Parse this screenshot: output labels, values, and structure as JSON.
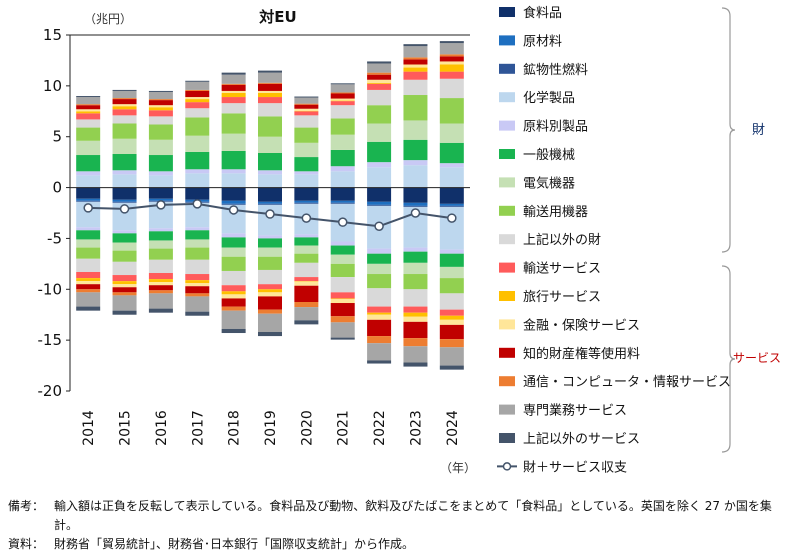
{
  "chart_data": {
    "type": "bar",
    "title": "対EU",
    "ylabel": "（兆円）",
    "xlabel": "（年）",
    "ylim": [
      -20,
      15
    ],
    "yticks": [
      15,
      10,
      5,
      0,
      -5,
      -10,
      -15,
      -20
    ],
    "categories": [
      "2014",
      "2015",
      "2016",
      "2017",
      "2018",
      "2019",
      "2020",
      "2021",
      "2022",
      "2023",
      "2024"
    ],
    "stacking": "positive values stacked upward from 0; negative values stacked downward from 0",
    "series": [
      {
        "name": "食料品",
        "color": "#10306a",
        "group": "goods",
        "values": [
          [
            0,
            -1.1
          ],
          [
            0,
            -1.2
          ],
          [
            0,
            -1.1
          ],
          [
            0,
            -1.2
          ],
          [
            0,
            -1.3
          ],
          [
            0,
            -1.4
          ],
          [
            0,
            -1.3
          ],
          [
            0,
            -1.3
          ],
          [
            0,
            -1.4
          ],
          [
            0,
            -1.5
          ],
          [
            0,
            -1.6
          ]
        ]
      },
      {
        "name": "原材料",
        "color": "#1e6fc0",
        "group": "goods",
        "values": [
          [
            0,
            -0.2
          ],
          [
            0,
            -0.2
          ],
          [
            0,
            -0.2
          ],
          [
            0,
            -0.2
          ],
          [
            0,
            -0.3
          ],
          [
            0,
            -0.2
          ],
          [
            0,
            -0.2
          ],
          [
            0,
            -0.2
          ],
          [
            0,
            -0.3
          ],
          [
            0,
            -0.3
          ],
          [
            0,
            -0.2
          ]
        ]
      },
      {
        "name": "鉱物性燃料",
        "color": "#2f5597",
        "group": "goods",
        "values": [
          [
            0,
            -0.1
          ],
          [
            0,
            -0.1
          ],
          [
            0,
            -0.1
          ],
          [
            0,
            -0.1
          ],
          [
            0,
            -0.1
          ],
          [
            0,
            -0.1
          ],
          [
            0,
            -0.1
          ],
          [
            0,
            -0.1
          ],
          [
            0,
            -0.1
          ],
          [
            0,
            -0.1
          ],
          [
            0,
            -0.1
          ]
        ]
      },
      {
        "name": "化学製品",
        "color": "#bdd7ee",
        "group": "goods",
        "values": [
          [
            1.2,
            -2.5
          ],
          [
            1.3,
            -2.7
          ],
          [
            1.2,
            -2.6
          ],
          [
            1.4,
            -2.4
          ],
          [
            1.4,
            -2.8
          ],
          [
            1.3,
            -3.0
          ],
          [
            1.3,
            -3.0
          ],
          [
            1.6,
            -3.7
          ],
          [
            2.0,
            -4.2
          ],
          [
            2.2,
            -4.0
          ],
          [
            2.0,
            -4.2
          ]
        ]
      },
      {
        "name": "原料別製品",
        "color": "#c9c9f5",
        "group": "goods",
        "values": [
          [
            0.4,
            -0.3
          ],
          [
            0.4,
            -0.3
          ],
          [
            0.4,
            -0.3
          ],
          [
            0.4,
            -0.3
          ],
          [
            0.4,
            -0.4
          ],
          [
            0.4,
            -0.3
          ],
          [
            0.3,
            -0.3
          ],
          [
            0.5,
            -0.4
          ],
          [
            0.5,
            -0.5
          ],
          [
            0.5,
            -0.4
          ],
          [
            0.4,
            -0.4
          ]
        ]
      },
      {
        "name": "一般機械",
        "color": "#19b450",
        "group": "goods",
        "values": [
          [
            1.6,
            -0.9
          ],
          [
            1.6,
            -0.9
          ],
          [
            1.6,
            -0.9
          ],
          [
            1.7,
            -0.9
          ],
          [
            1.8,
            -1.0
          ],
          [
            1.7,
            -0.9
          ],
          [
            1.4,
            -0.8
          ],
          [
            1.6,
            -0.9
          ],
          [
            2.0,
            -1.0
          ],
          [
            2.0,
            -1.1
          ],
          [
            2.0,
            -1.3
          ]
        ]
      },
      {
        "name": "電気機器",
        "color": "#c5e0b4",
        "group": "goods",
        "values": [
          [
            1.4,
            -0.8
          ],
          [
            1.5,
            -0.8
          ],
          [
            1.5,
            -0.8
          ],
          [
            1.6,
            -0.8
          ],
          [
            1.7,
            -0.9
          ],
          [
            1.6,
            -0.9
          ],
          [
            1.4,
            -0.8
          ],
          [
            1.5,
            -0.9
          ],
          [
            1.8,
            -1.0
          ],
          [
            1.9,
            -1.1
          ],
          [
            1.9,
            -1.1
          ]
        ]
      },
      {
        "name": "輸送用機器",
        "color": "#92d050",
        "group": "goods",
        "values": [
          [
            1.3,
            -1.1
          ],
          [
            1.5,
            -1.1
          ],
          [
            1.5,
            -1.1
          ],
          [
            1.8,
            -1.2
          ],
          [
            2.0,
            -1.4
          ],
          [
            2.0,
            -1.3
          ],
          [
            1.5,
            -0.9
          ],
          [
            1.6,
            -1.3
          ],
          [
            1.8,
            -1.4
          ],
          [
            2.5,
            -1.5
          ],
          [
            2.5,
            -1.5
          ]
        ]
      },
      {
        "name": "上記以外の財",
        "color": "#d9d9d9",
        "group": "goods",
        "values": [
          [
            0.8,
            -1.3
          ],
          [
            0.8,
            -1.3
          ],
          [
            0.8,
            -1.3
          ],
          [
            0.9,
            -1.4
          ],
          [
            1.0,
            -1.4
          ],
          [
            1.3,
            -1.4
          ],
          [
            1.2,
            -1.4
          ],
          [
            1.3,
            -1.5
          ],
          [
            1.5,
            -1.8
          ],
          [
            1.5,
            -1.7
          ],
          [
            1.9,
            -1.6
          ]
        ]
      },
      {
        "name": "輸送サービス",
        "color": "#ff5b5b",
        "group": "services",
        "values": [
          [
            0.6,
            -0.6
          ],
          [
            0.6,
            -0.6
          ],
          [
            0.6,
            -0.6
          ],
          [
            0.6,
            -0.6
          ],
          [
            0.6,
            -0.6
          ],
          [
            0.6,
            -0.5
          ],
          [
            0.4,
            -0.4
          ],
          [
            0.4,
            -0.6
          ],
          [
            0.6,
            -0.6
          ],
          [
            0.8,
            -0.6
          ],
          [
            0.7,
            -0.6
          ]
        ]
      },
      {
        "name": "旅行サービス",
        "color": "#ffc000",
        "group": "services",
        "values": [
          [
            0.2,
            -0.3
          ],
          [
            0.3,
            -0.3
          ],
          [
            0.3,
            -0.3
          ],
          [
            0.3,
            -0.3
          ],
          [
            0.4,
            -0.3
          ],
          [
            0.4,
            -0.3
          ],
          [
            0.05,
            -0.05
          ],
          [
            0.05,
            -0.05
          ],
          [
            0.1,
            -0.2
          ],
          [
            0.4,
            -0.4
          ],
          [
            0.7,
            -0.4
          ]
        ]
      },
      {
        "name": "金融・保険サービス",
        "color": "#ffe699",
        "group": "services",
        "values": [
          [
            0.2,
            -0.3
          ],
          [
            0.2,
            -0.3
          ],
          [
            0.2,
            -0.3
          ],
          [
            0.2,
            -0.3
          ],
          [
            0.2,
            -0.4
          ],
          [
            0.2,
            -0.4
          ],
          [
            0.2,
            -0.4
          ],
          [
            0.2,
            -0.4
          ],
          [
            0.3,
            -0.5
          ],
          [
            0.3,
            -0.5
          ],
          [
            0.3,
            -0.5
          ]
        ]
      },
      {
        "name": "知的財産権等使用料",
        "color": "#c00000",
        "group": "services",
        "values": [
          [
            0.4,
            -0.5
          ],
          [
            0.5,
            -0.5
          ],
          [
            0.5,
            -0.5
          ],
          [
            0.6,
            -0.7
          ],
          [
            0.6,
            -0.8
          ],
          [
            0.7,
            -1.3
          ],
          [
            0.4,
            -1.6
          ],
          [
            0.5,
            -1.3
          ],
          [
            0.5,
            -1.6
          ],
          [
            0.5,
            -1.6
          ],
          [
            0.5,
            -1.4
          ]
        ]
      },
      {
        "name": "通信・コンピュータ・情報サービス",
        "color": "#ed7d31",
        "group": "services",
        "values": [
          [
            0.1,
            -0.3
          ],
          [
            0.1,
            -0.3
          ],
          [
            0.1,
            -0.3
          ],
          [
            0.1,
            -0.3
          ],
          [
            0.1,
            -0.4
          ],
          [
            0.1,
            -0.4
          ],
          [
            0.1,
            -0.5
          ],
          [
            0.1,
            -0.6
          ],
          [
            0.2,
            -0.7
          ],
          [
            0.2,
            -0.8
          ],
          [
            0.2,
            -0.8
          ]
        ]
      },
      {
        "name": "専門業務サービス",
        "color": "#a6a6a6",
        "group": "services",
        "values": [
          [
            0.7,
            -1.4
          ],
          [
            0.7,
            -1.5
          ],
          [
            0.7,
            -1.5
          ],
          [
            0.8,
            -1.5
          ],
          [
            0.9,
            -1.8
          ],
          [
            1.0,
            -1.8
          ],
          [
            0.6,
            -1.3
          ],
          [
            0.8,
            -1.5
          ],
          [
            0.9,
            -1.7
          ],
          [
            1.1,
            -1.6
          ],
          [
            1.1,
            -1.8
          ]
        ]
      },
      {
        "name": "上記以外のサービス",
        "color": "#44546a",
        "group": "services",
        "values": [
          [
            0.1,
            -0.4
          ],
          [
            0.1,
            -0.4
          ],
          [
            0.1,
            -0.4
          ],
          [
            0.1,
            -0.4
          ],
          [
            0.2,
            -0.4
          ],
          [
            0.2,
            -0.4
          ],
          [
            0.1,
            -0.4
          ],
          [
            0.1,
            -0.2
          ],
          [
            0.2,
            -0.3
          ],
          [
            0.2,
            -0.4
          ],
          [
            0.2,
            -0.4
          ]
        ]
      }
    ],
    "line": {
      "name": "財＋サービス収支",
      "color": "#44546a",
      "values": [
        -2.0,
        -2.1,
        -1.7,
        -1.6,
        -2.2,
        -2.6,
        -3.0,
        -3.4,
        -3.8,
        -2.5,
        -3.0
      ]
    },
    "group_labels": {
      "goods": "財",
      "services": "サービス"
    },
    "group_colors": {
      "goods": "#10306a",
      "services": "#c00000"
    },
    "legend": "right",
    "grid": false
  },
  "notes": [
    {
      "label": "備考：",
      "text": "輸入額は正負を反転して表示している。食料品及び動物、飲料及びたばこをまとめて「食料品」としている。英国を除く 27 か国を集計。"
    },
    {
      "label": "資料：",
      "text": "財務省「貿易統計」、財務省･日本銀行「国際収支統計」から作成。"
    }
  ]
}
